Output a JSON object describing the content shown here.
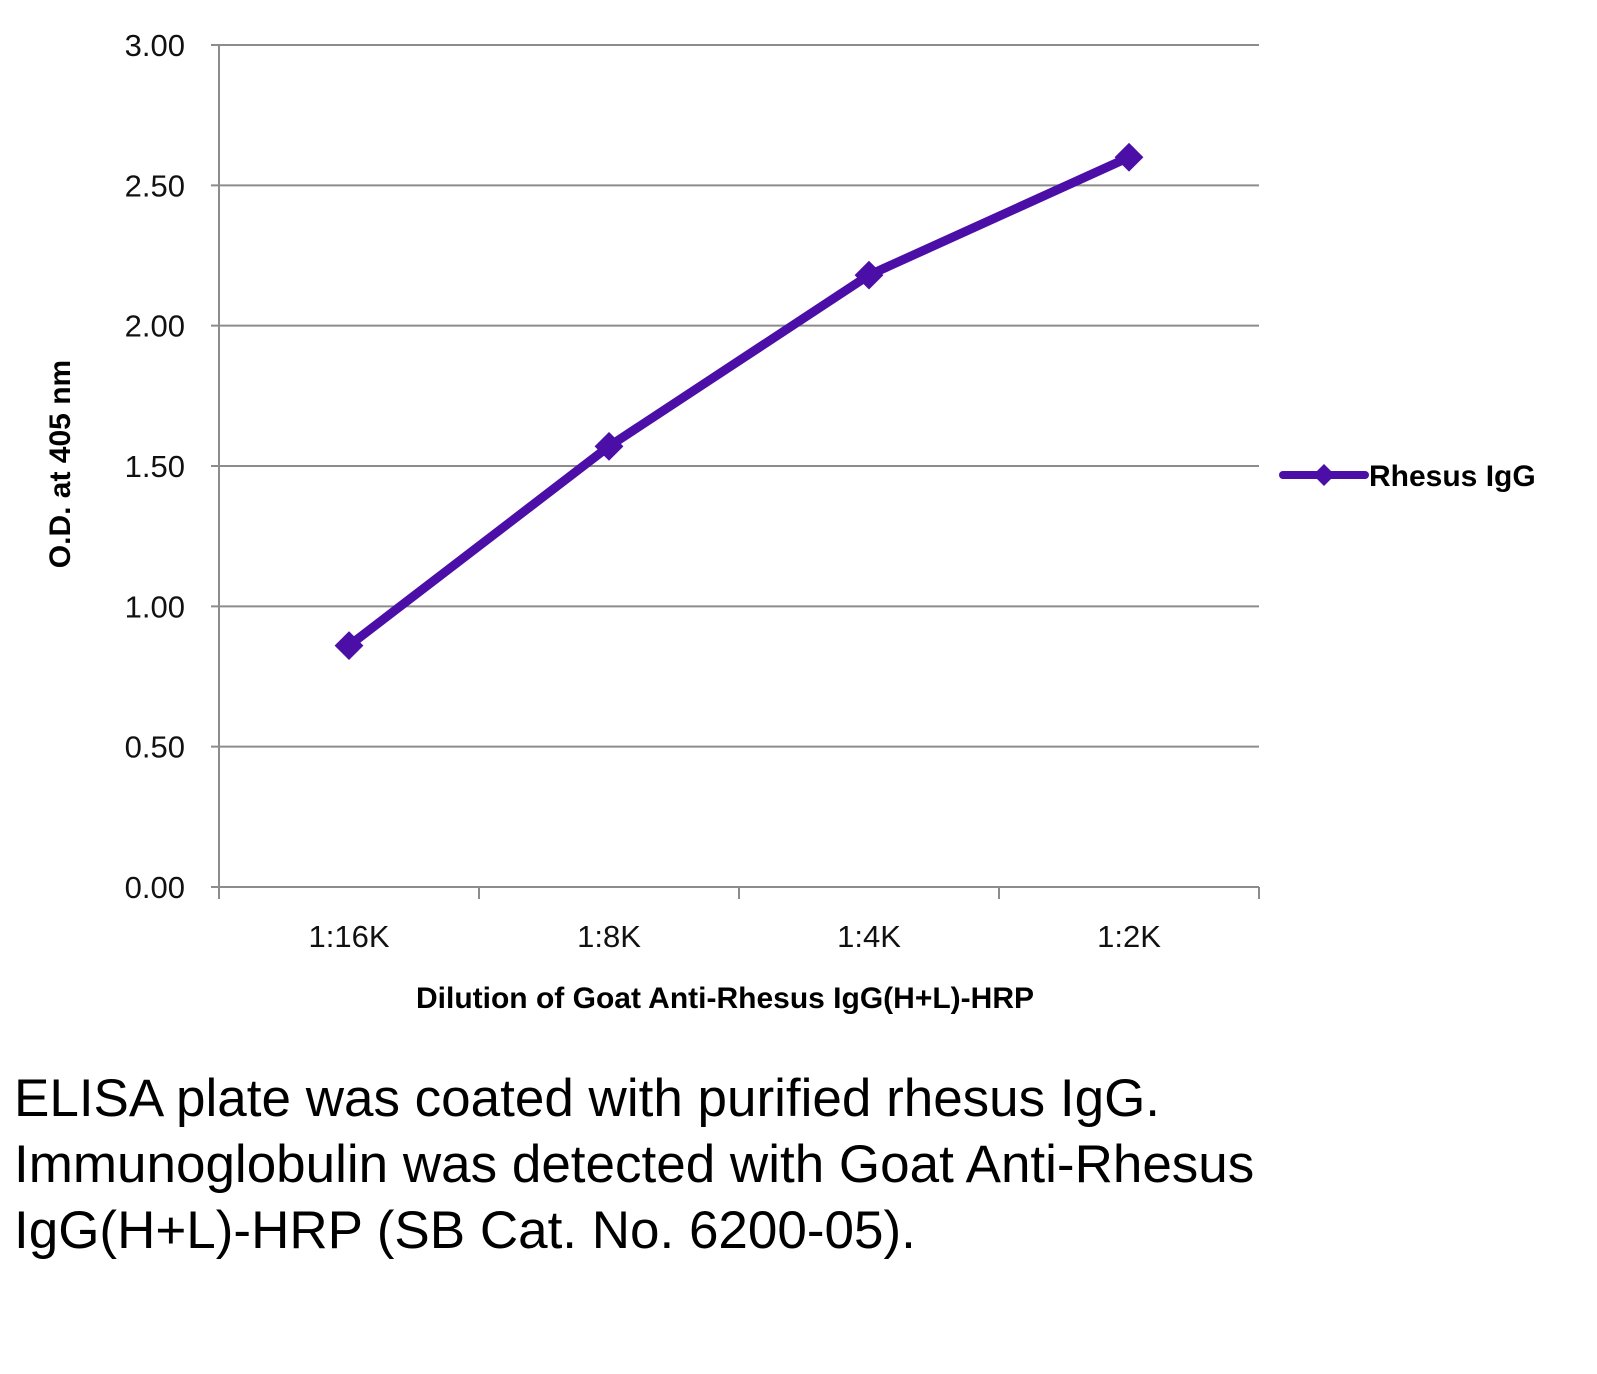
{
  "chart_data": {
    "type": "line",
    "title": "",
    "xlabel": "Dilution of Goat Anti-Rhesus IgG(H+L)-HRP",
    "ylabel": "O.D. at 405 nm",
    "categories": [
      "1:16K",
      "1:8K",
      "1:4K",
      "1:2K"
    ],
    "series": [
      {
        "name": "Rhesus IgG",
        "values": [
          0.86,
          1.57,
          2.18,
          2.6
        ],
        "color": "#4B0FA8",
        "marker": "diamond"
      }
    ],
    "ylim": [
      0,
      3
    ],
    "yticks": [
      "0.00",
      "0.50",
      "1.00",
      "1.50",
      "2.00",
      "2.50",
      "3.00"
    ],
    "grid": true,
    "legend_position": "right"
  },
  "caption": "ELISA plate was coated with purified rhesus IgG.  Immunoglobulin was detected with Goat Anti-Rhesus IgG(H+L)-HRP (SB Cat. No. 6200-05)."
}
